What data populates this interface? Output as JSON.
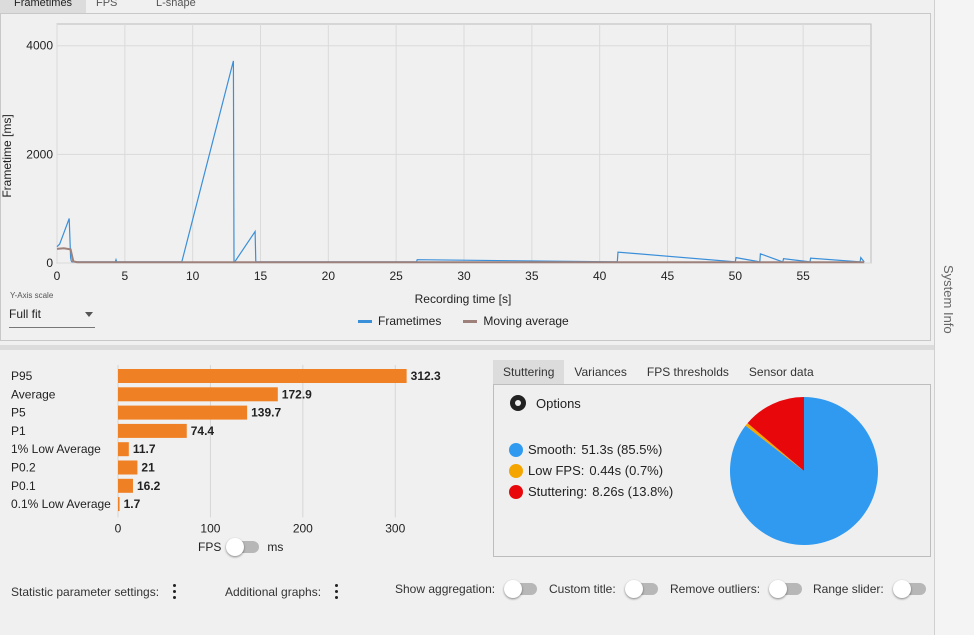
{
  "tabs": [
    {
      "label": "Frametimes",
      "active": true
    },
    {
      "label": "FPS",
      "active": false
    },
    {
      "label": "L-shape",
      "active": false
    }
  ],
  "frametime_chart": {
    "chart_data": {
      "type": "line",
      "xlabel": "Recording time [s]",
      "ylabel": "Frametime [ms]",
      "xlim": [
        0,
        60
      ],
      "ylim": [
        0,
        4400
      ],
      "xticks": [
        0,
        5,
        10,
        15,
        20,
        25,
        30,
        35,
        40,
        45,
        50,
        55
      ],
      "yticks": [
        0,
        2000,
        4000
      ],
      "grid": true,
      "series": [
        {
          "name": "Frametimes",
          "color": "#3a8fd9",
          "x": [
            0,
            0.2,
            0.5,
            0.9,
            1.0,
            1.05,
            1.1,
            4.3,
            4.35,
            4.4,
            9.2,
            13.0,
            13.05,
            13.1,
            14.6,
            14.65,
            14.7,
            26.5,
            26.55,
            41.3,
            41.35,
            50,
            50.05,
            51.8,
            51.85,
            53.5,
            53.55,
            55.5,
            55.55,
            59.2,
            59.25,
            59.5
          ],
          "y": [
            300,
            350,
            550,
            820,
            100,
            40,
            20,
            20,
            60,
            20,
            20,
            3720,
            20,
            20,
            580,
            20,
            20,
            20,
            60,
            20,
            200,
            20,
            100,
            20,
            170,
            20,
            80,
            20,
            90,
            20,
            100,
            20
          ]
        },
        {
          "name": "Moving average",
          "color": "#9e817a",
          "x": [
            0,
            0.5,
            1.0,
            1.2,
            1.5,
            59.5
          ],
          "y": [
            260,
            270,
            250,
            30,
            15,
            15
          ]
        }
      ]
    }
  },
  "y_axis_scale": {
    "label": "Y-Axis scale",
    "value": "Full fit"
  },
  "stats_chart": {
    "chart_data": {
      "type": "bar",
      "categories": [
        "P95",
        "Average",
        "P5",
        "P1",
        "1% Low Average",
        "P0.2",
        "P0.1",
        "0.1% Low Average"
      ],
      "values": [
        312.3,
        172.9,
        139.7,
        74.4,
        11.7,
        21,
        16.2,
        1.7
      ],
      "value_labels": [
        "312.3",
        "172.9",
        "139.7",
        "74.4",
        "11.7",
        "21",
        "16.2",
        "1.7"
      ],
      "xticks": [
        0,
        100,
        200,
        300
      ],
      "xlim": [
        0,
        330
      ],
      "color": "#f08024"
    }
  },
  "fps_toggle": {
    "left": "FPS",
    "right": "ms"
  },
  "right_tabs": [
    {
      "label": "Stuttering",
      "active": true
    },
    {
      "label": "Variances",
      "active": false
    },
    {
      "label": "FPS thresholds",
      "active": false
    },
    {
      "label": "Sensor data",
      "active": false
    }
  ],
  "stuttering": {
    "options_label": "Options",
    "items": [
      {
        "label": "Smooth:",
        "value": "51.3s (85.5%)",
        "color": "#2f9af0",
        "pct": 85.5
      },
      {
        "label": "Low FPS:",
        "value": "0.44s (0.7%)",
        "color": "#f5a500",
        "pct": 0.7
      },
      {
        "label": "Stuttering:",
        "value": "8.26s (13.8%)",
        "color": "#e8070b",
        "pct": 13.8
      }
    ]
  },
  "bottom_bar": {
    "statistic_settings": "Statistic parameter settings:",
    "additional_graphs": "Additional graphs:",
    "show_aggregation": "Show aggregation:",
    "custom_title": "Custom title:",
    "remove_outliers": "Remove outliers:",
    "range_slider": "Range slider:"
  },
  "sidebar": {
    "label": "System Info"
  }
}
